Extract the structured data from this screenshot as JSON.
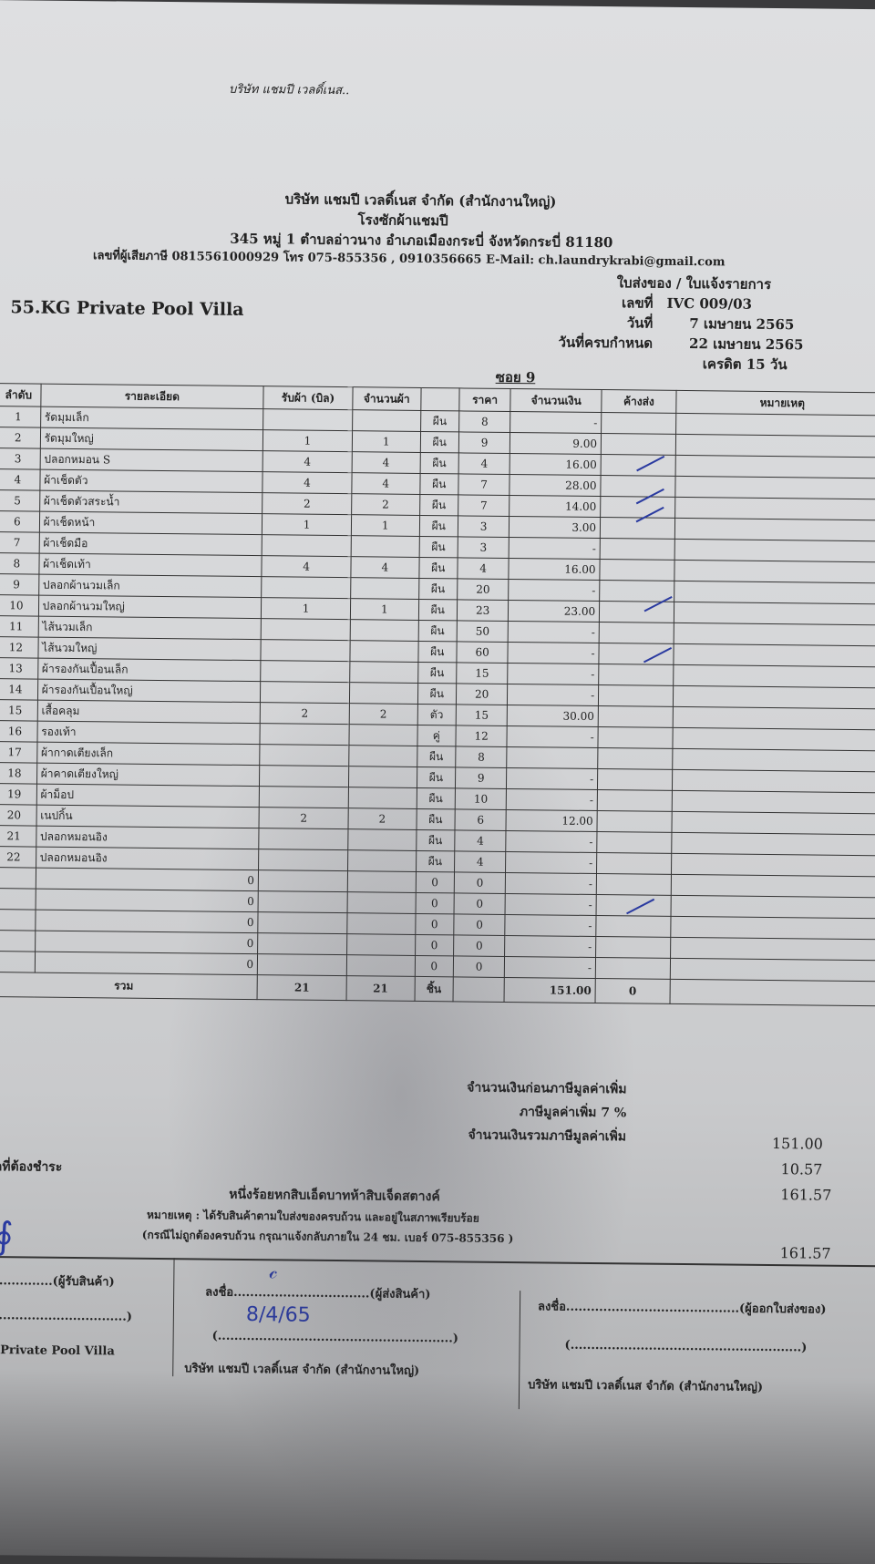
{
  "stamp_text": "บริษัท แชมปี เวลดิ์เนส..",
  "company": {
    "name": "บริษัท แชมปี เวลดิ์เนส จำกัด (สำนักงานใหญ่)",
    "subtitle": "โรงซักผ้าแชมปี",
    "address": "345 หมู่ 1 ตำบลอ่าวนาง อำเภอเมืองกระบี่ จังหวัดกระบี่ 81180",
    "contact": "เลขที่ผู้เสียภาษี 0815561000929 โทร 075-855356 , 0910356665 E-Mail: ch.laundrykrabi@gmail.com"
  },
  "doc_type": "ใบส่งของ / ใบแจ้งรายการ",
  "customer": "55.KG Private Pool Villa",
  "meta": {
    "no_label": "เลขที่",
    "no": "IVC 009/03",
    "date_label": "วันที่",
    "date": "7 เมษายน 2565",
    "due_label": "วันที่ครบกำหนด",
    "due": "22 เมษายน 2565",
    "credit": "เครดิต 15 วัน",
    "soi": "ซอย 9"
  },
  "table": {
    "headers": [
      "ลำดับ",
      "รายละเอียด",
      "รับผ้า (บิล)",
      "จำนวนผ้า",
      "",
      "ราคา",
      "จำนวนเงิน",
      "ค้างส่ง",
      "หมายเหตุ"
    ],
    "rows": [
      [
        "1",
        "รัดมุมเล็ก",
        "",
        "",
        "ผืน",
        "8",
        "-"
      ],
      [
        "2",
        "รัดมุมใหญ่",
        "1",
        "1",
        "ผืน",
        "9",
        "9.00"
      ],
      [
        "3",
        "ปลอกหมอน S",
        "4",
        "4",
        "ผืน",
        "4",
        "16.00"
      ],
      [
        "4",
        "ผ้าเช็ดตัว",
        "4",
        "4",
        "ผืน",
        "7",
        "28.00"
      ],
      [
        "5",
        "ผ้าเช็ดตัวสระน้ำ",
        "2",
        "2",
        "ผืน",
        "7",
        "14.00"
      ],
      [
        "6",
        "ผ้าเช็ดหน้า",
        "1",
        "1",
        "ผืน",
        "3",
        "3.00"
      ],
      [
        "7",
        "ผ้าเช็ดมือ",
        "",
        "",
        "ผืน",
        "3",
        "-"
      ],
      [
        "8",
        "ผ้าเช็ดเท้า",
        "4",
        "4",
        "ผืน",
        "4",
        "16.00"
      ],
      [
        "9",
        "ปลอกผ้านวมเล็ก",
        "",
        "",
        "ผืน",
        "20",
        "-"
      ],
      [
        "10",
        "ปลอกผ้านวมใหญ่",
        "1",
        "1",
        "ผืน",
        "23",
        "23.00"
      ],
      [
        "11",
        "ไส้นวมเล็ก",
        "",
        "",
        "ผืน",
        "50",
        "-"
      ],
      [
        "12",
        "ไส้นวมใหญ่",
        "",
        "",
        "ผืน",
        "60",
        "-"
      ],
      [
        "13",
        "ผ้ารองกันเปื้อนเล็ก",
        "",
        "",
        "ผืน",
        "15",
        "-"
      ],
      [
        "14",
        "ผ้ารองกันเปื้อนใหญ่",
        "",
        "",
        "ผืน",
        "20",
        "-"
      ],
      [
        "15",
        "เสื้อคลุม",
        "2",
        "2",
        "ตัว",
        "15",
        "30.00"
      ],
      [
        "16",
        "รองเท้า",
        "",
        "",
        "คู่",
        "12",
        "-"
      ],
      [
        "17",
        "ผ้ากาดเตียงเล็ก",
        "",
        "",
        "ผืน",
        "8",
        ""
      ],
      [
        "18",
        "ผ้าคาดเตียงใหญ่",
        "",
        "",
        "ผืน",
        "9",
        "-"
      ],
      [
        "19",
        "ผ้าม็อป",
        "",
        "",
        "ผืน",
        "10",
        "-"
      ],
      [
        "20",
        "เนปกิ้น",
        "2",
        "2",
        "ผืน",
        "6",
        "12.00"
      ],
      [
        "21",
        "ปลอกหมอนอิง",
        "",
        "",
        "ผืน",
        "4",
        "-"
      ],
      [
        "22",
        "ปลอกหมอนอิง",
        "",
        "",
        "ผืน",
        "4",
        "-"
      ],
      [
        "",
        "0",
        "",
        "",
        "0",
        "0",
        "-"
      ],
      [
        "",
        "0",
        "",
        "",
        "0",
        "0",
        "-"
      ],
      [
        "",
        "0",
        "",
        "",
        "0",
        "0",
        "-"
      ],
      [
        "",
        "0",
        "",
        "",
        "0",
        "0",
        "-"
      ],
      [
        "",
        "0",
        "",
        "",
        "0",
        "0",
        "-"
      ]
    ],
    "total": {
      "label": "รวม",
      "received": "21",
      "count": "21",
      "unit": "ชิ้น",
      "amount": "151.00",
      "pending": "0"
    }
  },
  "summary": {
    "before_vat_label": "จำนวนเงินก่อนภาษีมูลค่าเพิ่ม",
    "before_vat": "151.00",
    "vat_label": "ภาษีมูลค่าเพิ่ม 7 %",
    "vat": "10.57",
    "total_label": "จำนวนเงินรวมภาษีมูลค่าเพิ่ม",
    "total": "161.57",
    "payable_label": "ยอดที่ต้องชำระ",
    "payable": "161.57",
    "amount_words": "หนึ่งร้อยหกสิบเอ็ดบาทห้าสิบเจ็ดสตางค์",
    "note1": "หมายเหตุ : ได้รับสินค้าตามใบส่งของครบถ้วน และอยู่ในสภาพเรียบร้อย",
    "note2": "(กรณีไม่ถูกต้องครบถ้วน กรุณาแจ้งกลับภายใน 24 ชม. เบอร์ 075-855356 )"
  },
  "signatures": {
    "receiver_label": "(ผู้รับสินค้า)",
    "receiver_company": "G Private Pool Villa",
    "sign_label": "ลงชื่อ",
    "sender_label": "(ผู้ส่งสินค้า)",
    "sender_handwritten_date": "8/4/65",
    "sender_company": "บริษัท แชมปี เวลดิ์เนส จำกัด (สำนักงานใหญ่)",
    "issuer_label": "(ผู้ออกใบส่งของ)",
    "issuer_company": "บริษัท แชมปี เวลดิ์เนส จำกัด (สำนักงานใหญ่)"
  }
}
